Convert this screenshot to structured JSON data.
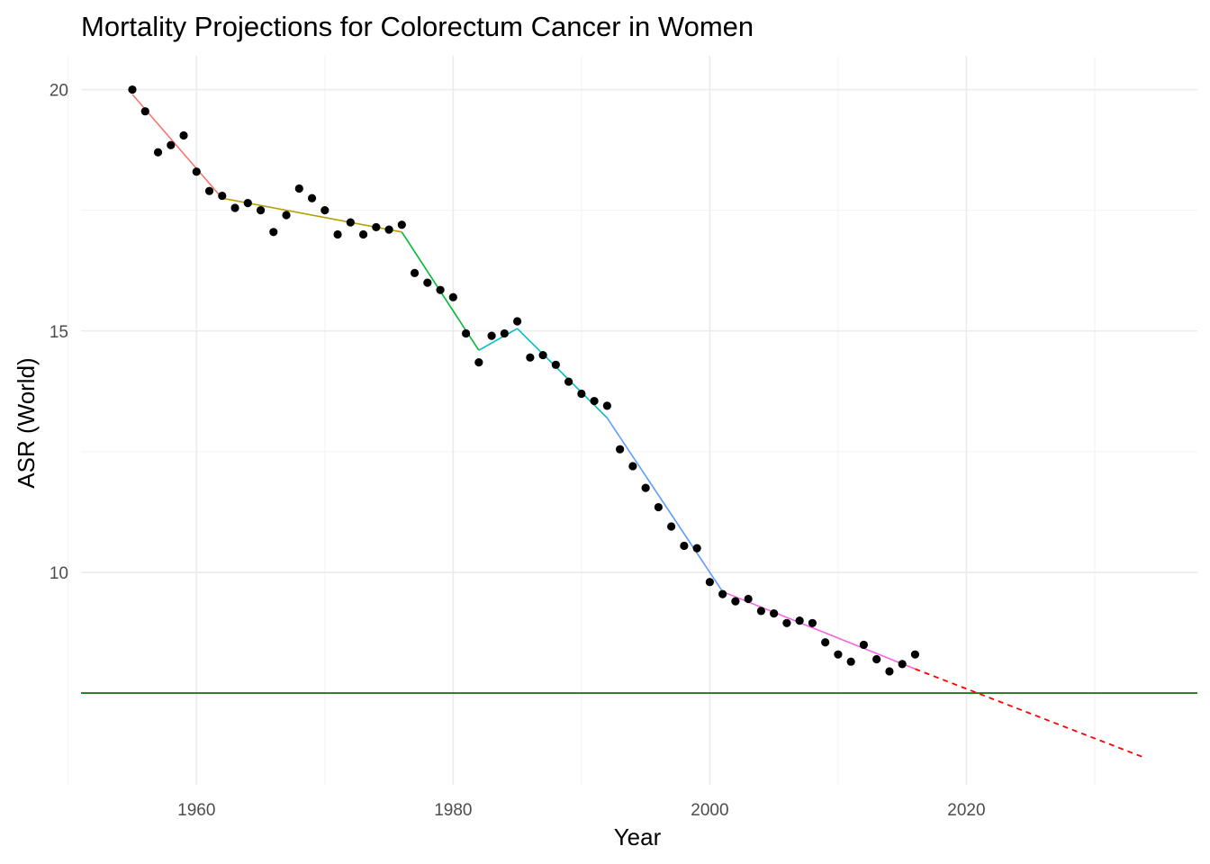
{
  "chart_data": {
    "type": "scatter",
    "title": "Mortality Projections for Colorectum Cancer in Women",
    "xlabel": "Year",
    "ylabel": "ASR (World)",
    "xlim": [
      1951,
      2038
    ],
    "ylim": [
      5.6,
      20.7
    ],
    "xticks": [
      1960,
      1980,
      2000,
      2020
    ],
    "xminor": [
      1950,
      1970,
      1990,
      2010,
      2030
    ],
    "yticks": [
      10,
      15,
      20
    ],
    "yminor": [
      7.5,
      12.5,
      17.5
    ],
    "grid": true,
    "legend": "none",
    "observed": {
      "x": [
        1955,
        1956,
        1957,
        1958,
        1959,
        1960,
        1961,
        1962,
        1963,
        1964,
        1965,
        1966,
        1967,
        1968,
        1969,
        1970,
        1971,
        1972,
        1973,
        1974,
        1975,
        1976,
        1977,
        1978,
        1979,
        1980,
        1981,
        1982,
        1983,
        1984,
        1985,
        1986,
        1987,
        1988,
        1989,
        1990,
        1991,
        1992,
        1993,
        1994,
        1995,
        1996,
        1997,
        1998,
        1999,
        2000,
        2001,
        2002,
        2003,
        2004,
        2005,
        2006,
        2007,
        2008,
        2009,
        2010,
        2011,
        2012,
        2013,
        2014,
        2015,
        2016
      ],
      "y": [
        20.0,
        19.55,
        18.7,
        18.85,
        19.05,
        18.3,
        17.9,
        17.8,
        17.55,
        17.65,
        17.5,
        17.05,
        17.4,
        17.95,
        17.75,
        17.5,
        17.0,
        17.25,
        17.0,
        17.15,
        17.1,
        17.2,
        16.2,
        16.0,
        15.85,
        15.7,
        14.95,
        14.35,
        14.9,
        14.95,
        15.2,
        14.45,
        14.5,
        14.3,
        13.95,
        13.7,
        13.55,
        13.45,
        12.55,
        12.2,
        11.75,
        11.35,
        10.95,
        10.55,
        10.5,
        9.8,
        9.55,
        9.4,
        9.45,
        9.2,
        9.15,
        8.95,
        9.0,
        8.95,
        8.55,
        8.3,
        8.15,
        8.5,
        8.2,
        7.95,
        8.1,
        8.3
      ],
      "color": "#000000"
    },
    "segments": [
      {
        "x": [
          1955,
          1962
        ],
        "y": [
          19.9,
          17.75
        ],
        "color": "#F8766D"
      },
      {
        "x": [
          1962,
          1976
        ],
        "y": [
          17.75,
          17.05
        ],
        "color": "#B79F00"
      },
      {
        "x": [
          1976,
          1982
        ],
        "y": [
          17.05,
          14.6
        ],
        "color": "#00BA38"
      },
      {
        "x": [
          1982,
          1985
        ],
        "y": [
          14.6,
          15.05
        ],
        "color": "#00BFC4"
      },
      {
        "x": [
          1985,
          1992
        ],
        "y": [
          15.05,
          13.2
        ],
        "color": "#00BFC4"
      },
      {
        "x": [
          1992,
          2001
        ],
        "y": [
          13.2,
          9.6
        ],
        "color": "#619CFF"
      },
      {
        "x": [
          2001,
          2016
        ],
        "y": [
          9.6,
          8.0
        ],
        "color": "#F564E3"
      }
    ],
    "projection": {
      "x": [
        2016,
        2034
      ],
      "y": [
        8.0,
        6.15
      ],
      "color": "#FF0000",
      "style": "dashed"
    },
    "reference_line": {
      "y": 7.5,
      "color": "#006400"
    }
  }
}
